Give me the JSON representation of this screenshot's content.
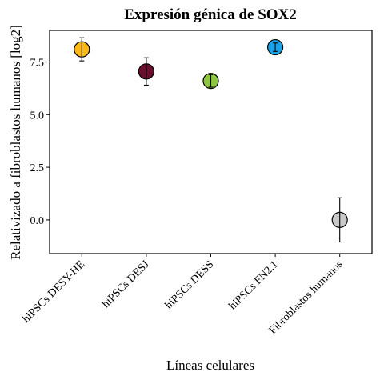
{
  "chart_data": {
    "type": "scatter",
    "title": "Expresión génica de SOX2",
    "xlabel": "Líneas celulares",
    "ylabel": "Relativizado a fibroblastos humanos [log2]",
    "categories": [
      "hiPSCs DESY-HE",
      "hiPSCs DESJ",
      "hiPSCs DESS",
      "hiPSCs FN2.1",
      "Fibroblastos humanos"
    ],
    "values": [
      8.1,
      7.05,
      6.6,
      8.2,
      0.0
    ],
    "error_low": [
      7.55,
      6.4,
      6.3,
      8.0,
      -1.05
    ],
    "error_high": [
      8.65,
      7.7,
      6.9,
      8.4,
      1.05
    ],
    "colors": [
      "#FDB813",
      "#6B0F2E",
      "#8DC63F",
      "#1AA3E8",
      "#C8C8C8"
    ],
    "yticks": [
      0.0,
      2.5,
      5.0,
      7.5
    ],
    "ytick_labels": [
      "0.0",
      "2.5",
      "5.0",
      "7.5"
    ],
    "ylim": [
      -1.6,
      9.0
    ],
    "grid": false,
    "legend": "none"
  }
}
